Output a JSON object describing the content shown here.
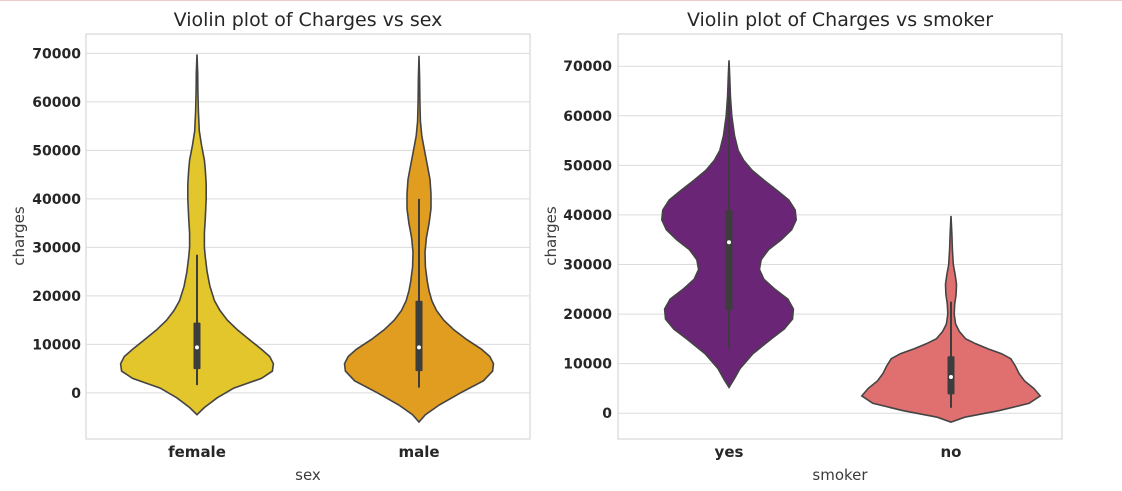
{
  "chart_data": [
    {
      "type": "violin",
      "title": "Violin plot of Charges vs sex",
      "xlabel": "sex",
      "ylabel": "charges",
      "categories": [
        "female",
        "male"
      ],
      "colors": [
        "#e3c52c",
        "#e09d20"
      ],
      "ylim": [
        -9500,
        74000
      ],
      "yticks": [
        0,
        10000,
        20000,
        30000,
        40000,
        50000,
        60000,
        70000
      ],
      "grid": true,
      "violins": [
        {
          "category": "female",
          "min": -4500,
          "max": 69800,
          "q1": 4900,
          "median": 9400,
          "q3": 14500,
          "whisker_low": 1600,
          "whisker_high": 28500,
          "profile": [
            [
              -4500,
              0
            ],
            [
              -3000,
              0.08
            ],
            [
              -1000,
              0.22
            ],
            [
              1000,
              0.4
            ],
            [
              3000,
              0.7
            ],
            [
              4500,
              0.82
            ],
            [
              6000,
              0.83
            ],
            [
              7500,
              0.79
            ],
            [
              9000,
              0.7
            ],
            [
              11000,
              0.57
            ],
            [
              13000,
              0.44
            ],
            [
              15000,
              0.33
            ],
            [
              17000,
              0.25
            ],
            [
              19000,
              0.19
            ],
            [
              22000,
              0.14
            ],
            [
              25000,
              0.11
            ],
            [
              28000,
              0.09
            ],
            [
              30000,
              0.08
            ],
            [
              33000,
              0.08
            ],
            [
              36000,
              0.09
            ],
            [
              40000,
              0.1
            ],
            [
              43000,
              0.1
            ],
            [
              46000,
              0.09
            ],
            [
              48000,
              0.08
            ],
            [
              51000,
              0.05
            ],
            [
              54000,
              0.025
            ],
            [
              58000,
              0.015
            ],
            [
              62000,
              0.01
            ],
            [
              66000,
              0.008
            ],
            [
              69800,
              0
            ]
          ]
        },
        {
          "category": "male",
          "min": -6000,
          "max": 69500,
          "q1": 4500,
          "median": 9400,
          "q3": 19000,
          "whisker_low": 1100,
          "whisker_high": 40000,
          "profile": [
            [
              -6000,
              0
            ],
            [
              -4500,
              0.07
            ],
            [
              -2500,
              0.22
            ],
            [
              0,
              0.45
            ],
            [
              2500,
              0.7
            ],
            [
              4500,
              0.8
            ],
            [
              6000,
              0.81
            ],
            [
              7500,
              0.77
            ],
            [
              9000,
              0.68
            ],
            [
              11000,
              0.52
            ],
            [
              13000,
              0.38
            ],
            [
              15000,
              0.27
            ],
            [
              17000,
              0.19
            ],
            [
              19000,
              0.14
            ],
            [
              21000,
              0.11
            ],
            [
              23000,
              0.09
            ],
            [
              26000,
              0.07
            ],
            [
              29000,
              0.065
            ],
            [
              32000,
              0.08
            ],
            [
              35000,
              0.11
            ],
            [
              38000,
              0.13
            ],
            [
              41000,
              0.13
            ],
            [
              44000,
              0.12
            ],
            [
              47000,
              0.09
            ],
            [
              50000,
              0.06
            ],
            [
              53000,
              0.03
            ],
            [
              56000,
              0.015
            ],
            [
              60000,
              0.01
            ],
            [
              65000,
              0.007
            ],
            [
              69500,
              0
            ]
          ]
        }
      ]
    },
    {
      "type": "violin",
      "title": "Violin plot of Charges vs smoker",
      "xlabel": "smoker",
      "ylabel": "charges",
      "categories": [
        "yes",
        "no"
      ],
      "colors": [
        "#6a2576",
        "#e07070"
      ],
      "ylim": [
        -5200,
        76500
      ],
      "yticks": [
        0,
        10000,
        20000,
        30000,
        40000,
        50000,
        60000,
        70000
      ],
      "grid": true,
      "violins": [
        {
          "category": "yes",
          "min": 5200,
          "max": 71200,
          "q1": 20800,
          "median": 34500,
          "q3": 41000,
          "whisker_low": 13000,
          "whisker_high": 63800,
          "profile": [
            [
              5200,
              0
            ],
            [
              7000,
              0.06
            ],
            [
              9000,
              0.12
            ],
            [
              12000,
              0.26
            ],
            [
              15000,
              0.46
            ],
            [
              17000,
              0.6
            ],
            [
              19000,
              0.69
            ],
            [
              21000,
              0.7
            ],
            [
              23000,
              0.64
            ],
            [
              25000,
              0.5
            ],
            [
              27000,
              0.38
            ],
            [
              29000,
              0.33
            ],
            [
              31000,
              0.35
            ],
            [
              33000,
              0.43
            ],
            [
              35000,
              0.57
            ],
            [
              37000,
              0.68
            ],
            [
              39000,
              0.73
            ],
            [
              41000,
              0.72
            ],
            [
              43000,
              0.65
            ],
            [
              45000,
              0.52
            ],
            [
              47000,
              0.38
            ],
            [
              49000,
              0.25
            ],
            [
              51000,
              0.16
            ],
            [
              53000,
              0.1
            ],
            [
              56000,
              0.06
            ],
            [
              60000,
              0.03
            ],
            [
              64000,
              0.015
            ],
            [
              68000,
              0.008
            ],
            [
              71200,
              0
            ]
          ]
        },
        {
          "category": "no",
          "min": -1800,
          "max": 39800,
          "q1": 3800,
          "median": 7300,
          "q3": 11500,
          "whisker_low": 1100,
          "whisker_high": 22500,
          "profile": [
            [
              -1800,
              0
            ],
            [
              -800,
              0.15
            ],
            [
              500,
              0.52
            ],
            [
              2000,
              0.85
            ],
            [
              3500,
              0.97
            ],
            [
              5000,
              0.9
            ],
            [
              6500,
              0.8
            ],
            [
              8000,
              0.74
            ],
            [
              9500,
              0.7
            ],
            [
              11000,
              0.65
            ],
            [
              12000,
              0.55
            ],
            [
              13000,
              0.4
            ],
            [
              14000,
              0.27
            ],
            [
              15000,
              0.16
            ],
            [
              16500,
              0.09
            ],
            [
              18000,
              0.05
            ],
            [
              20000,
              0.035
            ],
            [
              22000,
              0.04
            ],
            [
              24000,
              0.055
            ],
            [
              26000,
              0.06
            ],
            [
              28000,
              0.045
            ],
            [
              30000,
              0.025
            ],
            [
              33000,
              0.015
            ],
            [
              36000,
              0.01
            ],
            [
              39800,
              0
            ]
          ]
        }
      ]
    }
  ]
}
